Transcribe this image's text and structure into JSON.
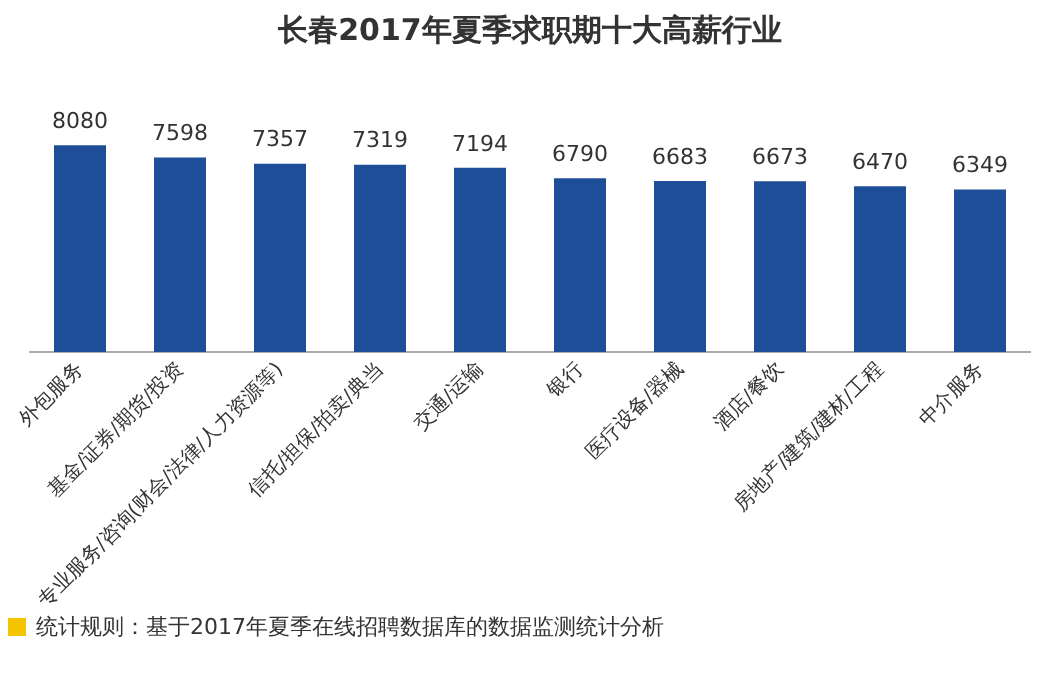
{
  "chart_data": {
    "type": "bar",
    "title": "长春2017年夏季求职期十大高薪行业",
    "categories": [
      "外包服务",
      "基金/证券/期货/投资",
      "专业服务/咨询(财会/法律/人力资源等)",
      "信托/担保/拍卖/典当",
      "交通/运输",
      "银行",
      "医疗设备/器械",
      "酒店/餐饮",
      "房地产/建筑/建材/工程",
      "中介服务"
    ],
    "values": [
      8080,
      7598,
      7357,
      7319,
      7194,
      6790,
      6683,
      6673,
      6470,
      6349
    ],
    "color": "#1f4e99",
    "data_labels": true,
    "grid": false,
    "legend": false,
    "annotations": [
      "统计规则：基于2017年夏季在线招聘数据库的数据监测统计分析"
    ]
  }
}
